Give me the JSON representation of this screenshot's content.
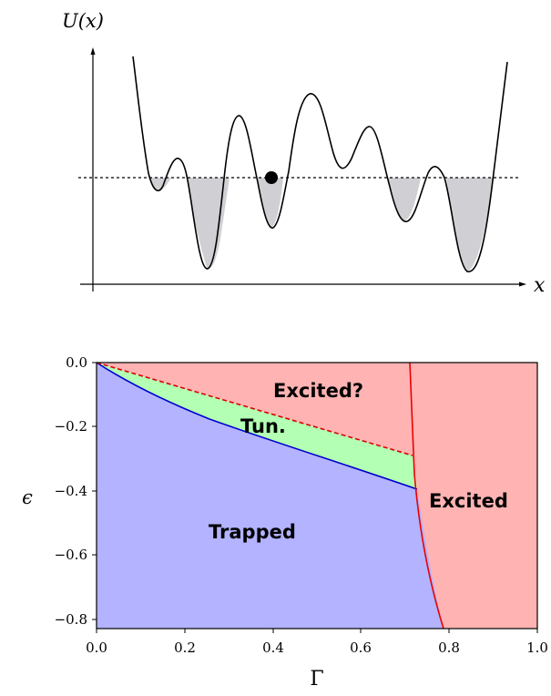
{
  "chart_data": [
    {
      "type": "line",
      "ylabel": "U(x)",
      "xlabel": "x",
      "grid": false,
      "series": [
        {
          "x": [
            0.1,
            0.13,
            0.16,
            0.19,
            0.22,
            0.25,
            0.28,
            0.31,
            0.34,
            0.37,
            0.4,
            0.43,
            0.46,
            0.49,
            0.52,
            0.55,
            0.58,
            0.61,
            0.64,
            0.67,
            0.7,
            0.73,
            0.76,
            0.79,
            0.82,
            0.85,
            0.88,
            0.91,
            0.94
          ],
          "y": [
            0.95,
            0.42,
            0.36,
            0.5,
            0.15,
            0.06,
            0.42,
            0.66,
            0.4,
            0.22,
            0.38,
            0.75,
            0.68,
            0.5,
            0.58,
            0.62,
            0.48,
            0.38,
            0.22,
            0.18,
            0.38,
            0.46,
            0.32,
            0.05,
            0.15,
            0.52,
            0.9,
            0.92,
            0.93
          ]
        }
      ],
      "energy_level": 0.44,
      "particle_x": 0.4
    },
    {
      "type": "area",
      "xlabel": "Γ",
      "ylabel": "ϵ",
      "xlim": [
        0.0,
        1.0
      ],
      "ylim": [
        -0.83,
        0.0
      ],
      "x_ticks": [
        "0.0",
        "0.2",
        "0.4",
        "0.6",
        "0.8",
        "1.0"
      ],
      "y_ticks": [
        "0.0",
        "−0.2",
        "−0.4",
        "−0.6",
        "−0.8"
      ],
      "regions": [
        {
          "label": "Trapped",
          "color": "#b3b3ff"
        },
        {
          "label": "Tun.",
          "color": "#b3ffb3"
        },
        {
          "label": "Excited?",
          "color": "#ffb3b3"
        },
        {
          "label": "Excited",
          "color": "#ffb3b3"
        }
      ],
      "boundaries": {
        "trapped_tunnel_blue": {
          "x": [
            0.0,
            0.1,
            0.2,
            0.3,
            0.4,
            0.5,
            0.6,
            0.7,
            0.725
          ],
          "y": [
            0.0,
            -0.09,
            -0.155,
            -0.21,
            -0.26,
            -0.3,
            -0.34,
            -0.375,
            -0.385
          ]
        },
        "tunnel_excited_red_dashed": {
          "x": [
            0.0,
            0.72
          ],
          "y": [
            0.0,
            -0.29
          ]
        },
        "excited_red_solid": {
          "x": [
            0.71,
            0.715,
            0.72,
            0.725,
            0.735,
            0.75,
            0.765,
            0.78,
            0.79
          ],
          "y": [
            0.0,
            -0.1,
            -0.2,
            -0.3,
            -0.4,
            -0.5,
            -0.6,
            -0.7,
            -0.83
          ]
        }
      }
    }
  ],
  "labels": {
    "top_ylabel": "U(x)",
    "top_xlabel": "x",
    "bottom_xlabel": "Γ",
    "bottom_ylabel": "ϵ",
    "region_excited_q": "Excited?",
    "region_tun": "Tun.",
    "region_trapped": "Trapped",
    "region_excited": "Excited"
  }
}
